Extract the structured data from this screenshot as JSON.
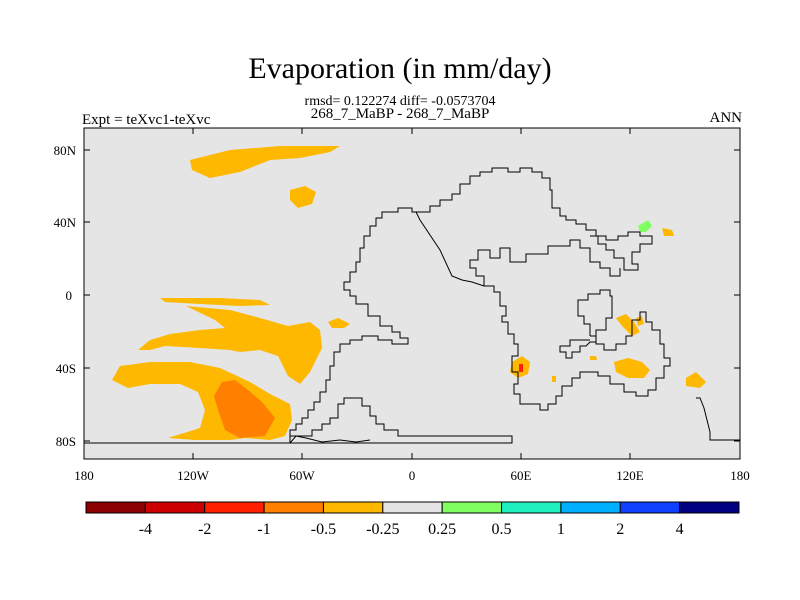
{
  "plot": {
    "title": "Evaporation (in mm/day)",
    "stats": "rmsd= 0.122274 diff= -0.0573704",
    "subtitle": "268_7_MaBP - 268_7_MaBP",
    "experiment": "Expt = teXvc1-teXvc",
    "season": "ANN"
  },
  "axes": {
    "x_ticks": [
      "180",
      "120W",
      "60W",
      "0",
      "60E",
      "120E",
      "180"
    ],
    "y_ticks": [
      "80N",
      "40N",
      "0",
      "40S",
      "80S"
    ],
    "background": "#e5e5e5"
  },
  "colorbar": {
    "labels": [
      "-4",
      "-2",
      "-1",
      "-0.5",
      "-0.25",
      "0.25",
      "0.5",
      "1",
      "2",
      "4"
    ],
    "colors": [
      "#8b0000",
      "#cc0000",
      "#ff2000",
      "#ff7f00",
      "#ffb800",
      "#e5e5e5",
      "#80ff60",
      "#20f0c0",
      "#00b0ff",
      "#1040ff",
      "#000080"
    ]
  }
}
